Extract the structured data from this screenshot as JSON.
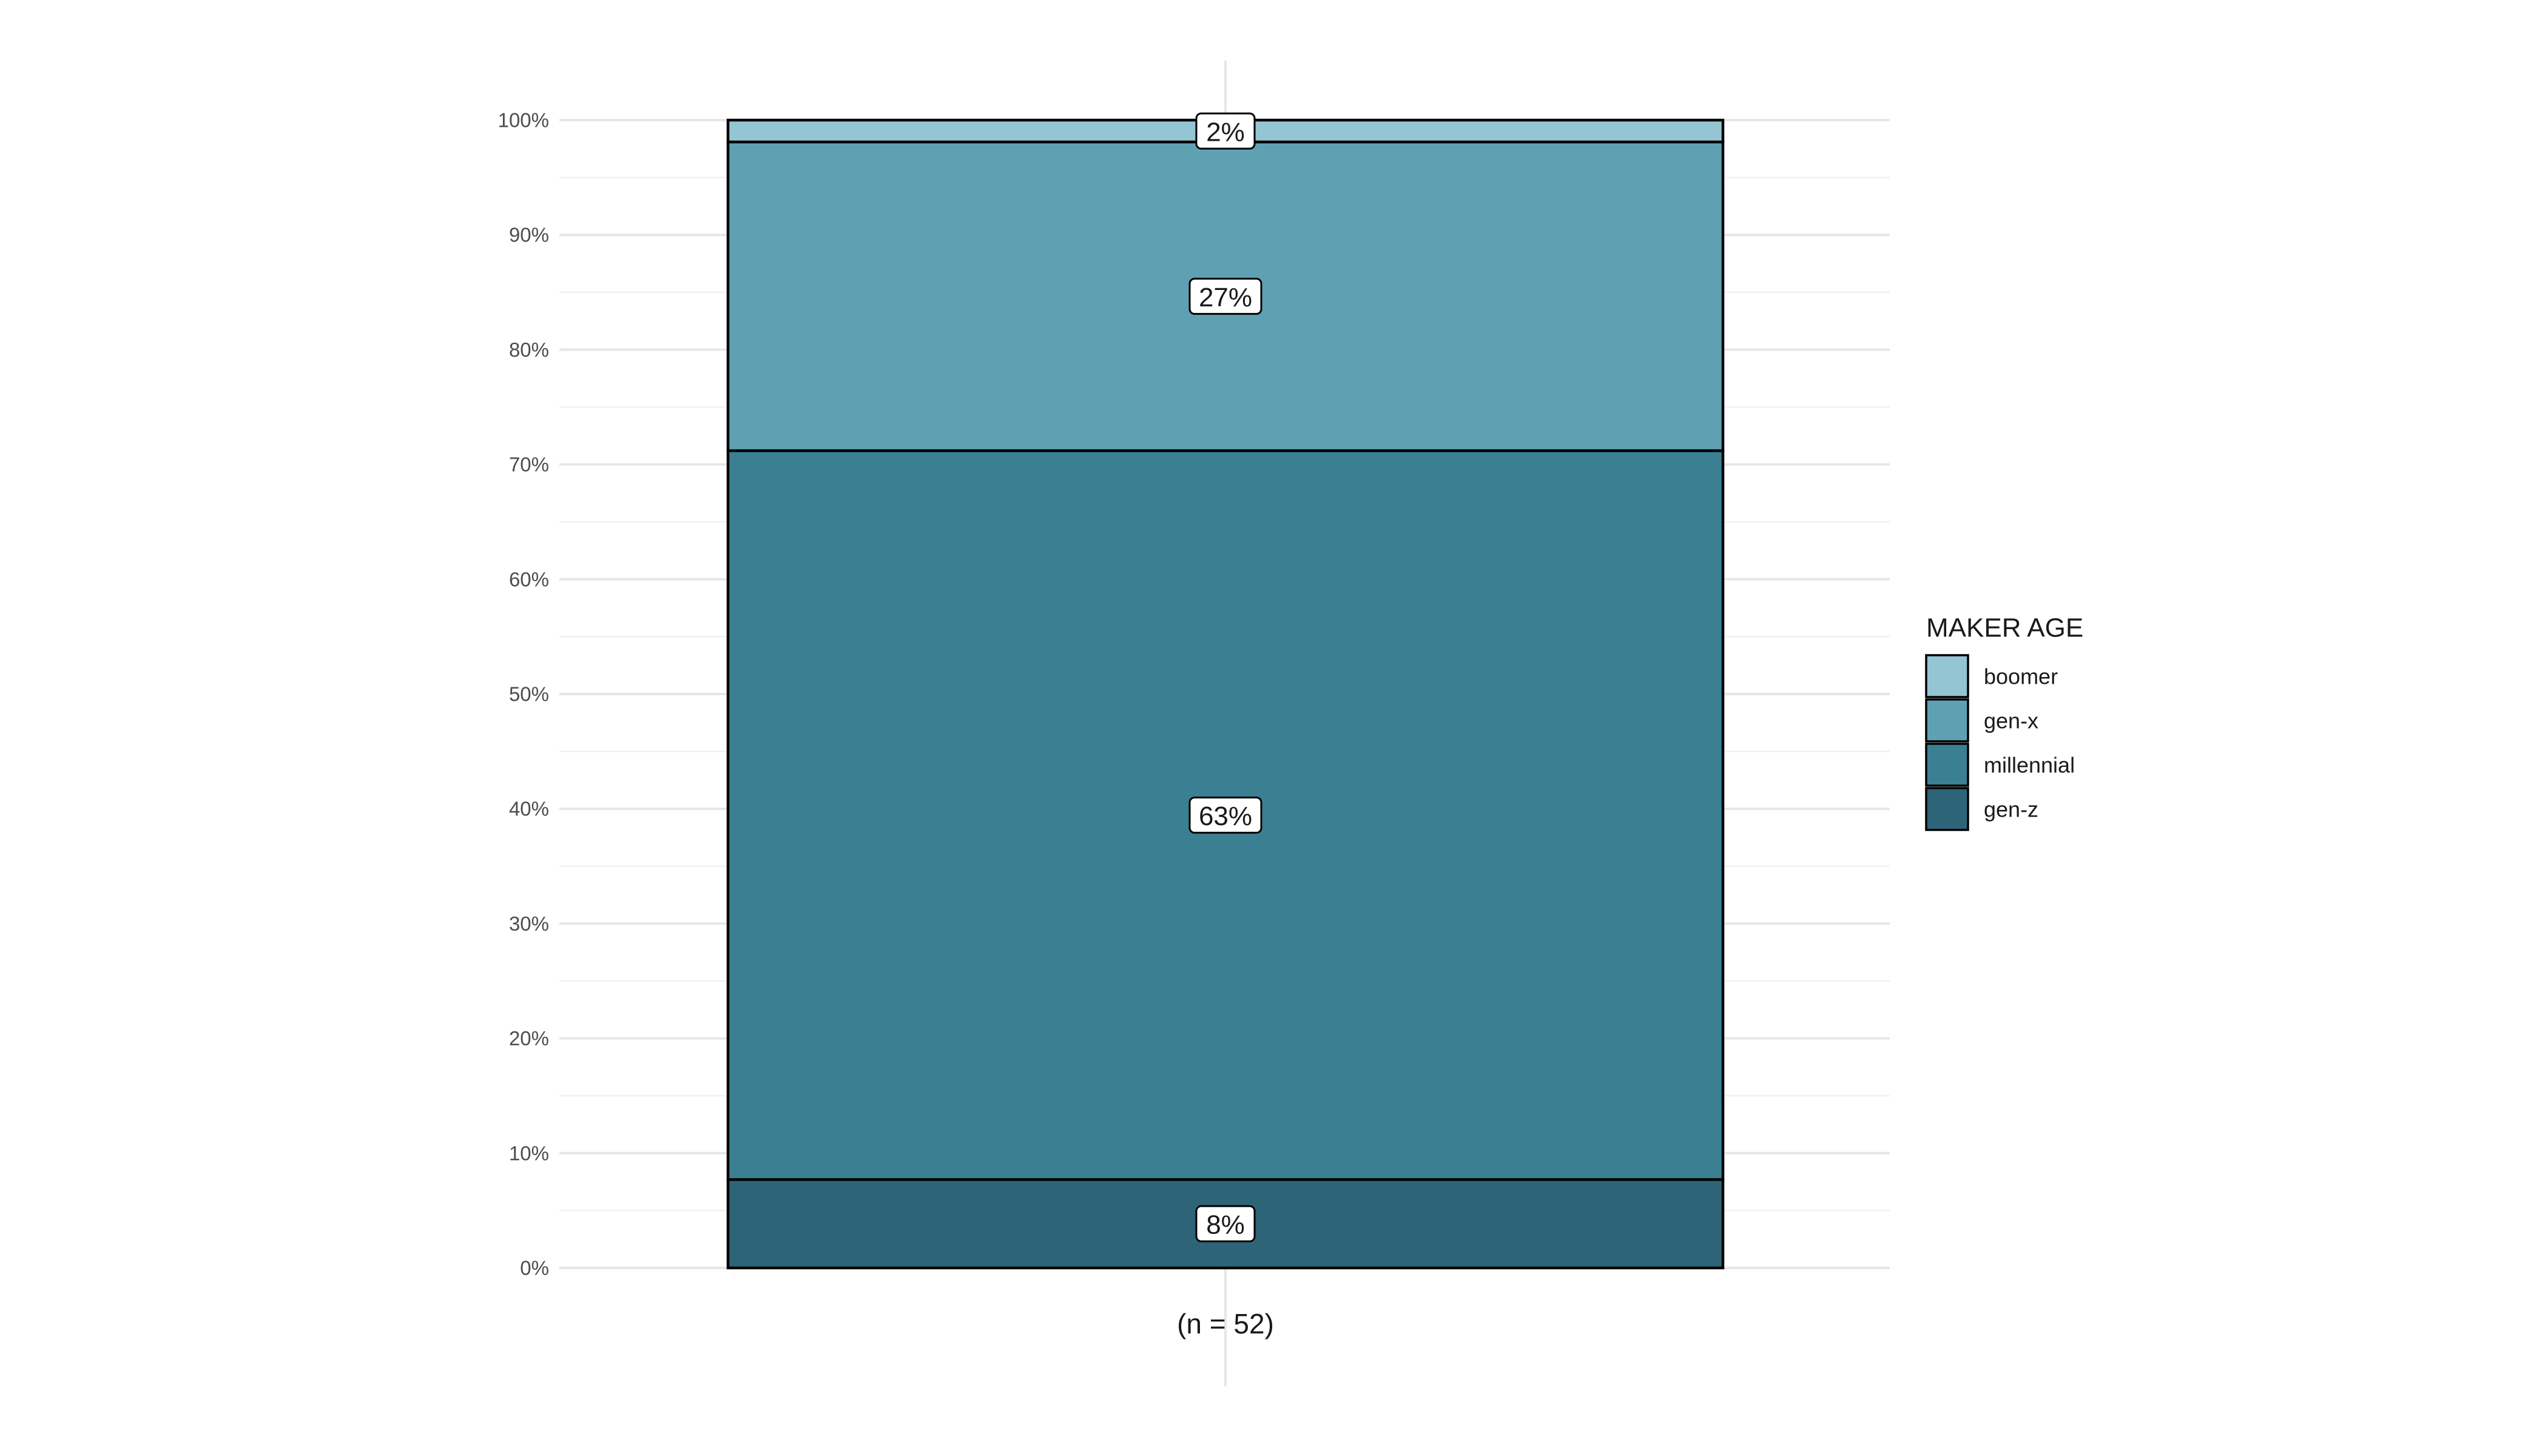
{
  "chart_data": {
    "type": "bar",
    "stacked": true,
    "categories": [
      "(n = 52)"
    ],
    "series": [
      {
        "name": "gen-z",
        "values": [
          8
        ],
        "label": "8%",
        "color": "#2d6478"
      },
      {
        "name": "millennial",
        "values": [
          63
        ],
        "label": "63%",
        "color": "#3b7f92"
      },
      {
        "name": "gen-x",
        "values": [
          27
        ],
        "label": "27%",
        "color": "#5fa1b3"
      },
      {
        "name": "boomer",
        "values": [
          2
        ],
        "label": "2%",
        "color": "#93c5d3"
      }
    ],
    "segment_bounds": [
      [
        0,
        7.7
      ],
      [
        7.7,
        71.2
      ],
      [
        71.2,
        98.1
      ],
      [
        98.1,
        100
      ]
    ],
    "title": "",
    "xlabel": "",
    "ylabel": "",
    "ylim": [
      0,
      100
    ],
    "y_ticks": [
      0,
      10,
      20,
      30,
      40,
      50,
      60,
      70,
      80,
      90,
      100
    ],
    "y_tick_labels": [
      "0%",
      "10%",
      "20%",
      "30%",
      "40%",
      "50%",
      "60%",
      "70%",
      "80%",
      "90%",
      "100%"
    ],
    "grid": true,
    "legend": {
      "title": "MAKER AGE",
      "position": "right",
      "order": [
        "boomer",
        "gen-x",
        "millennial",
        "gen-z"
      ]
    }
  }
}
